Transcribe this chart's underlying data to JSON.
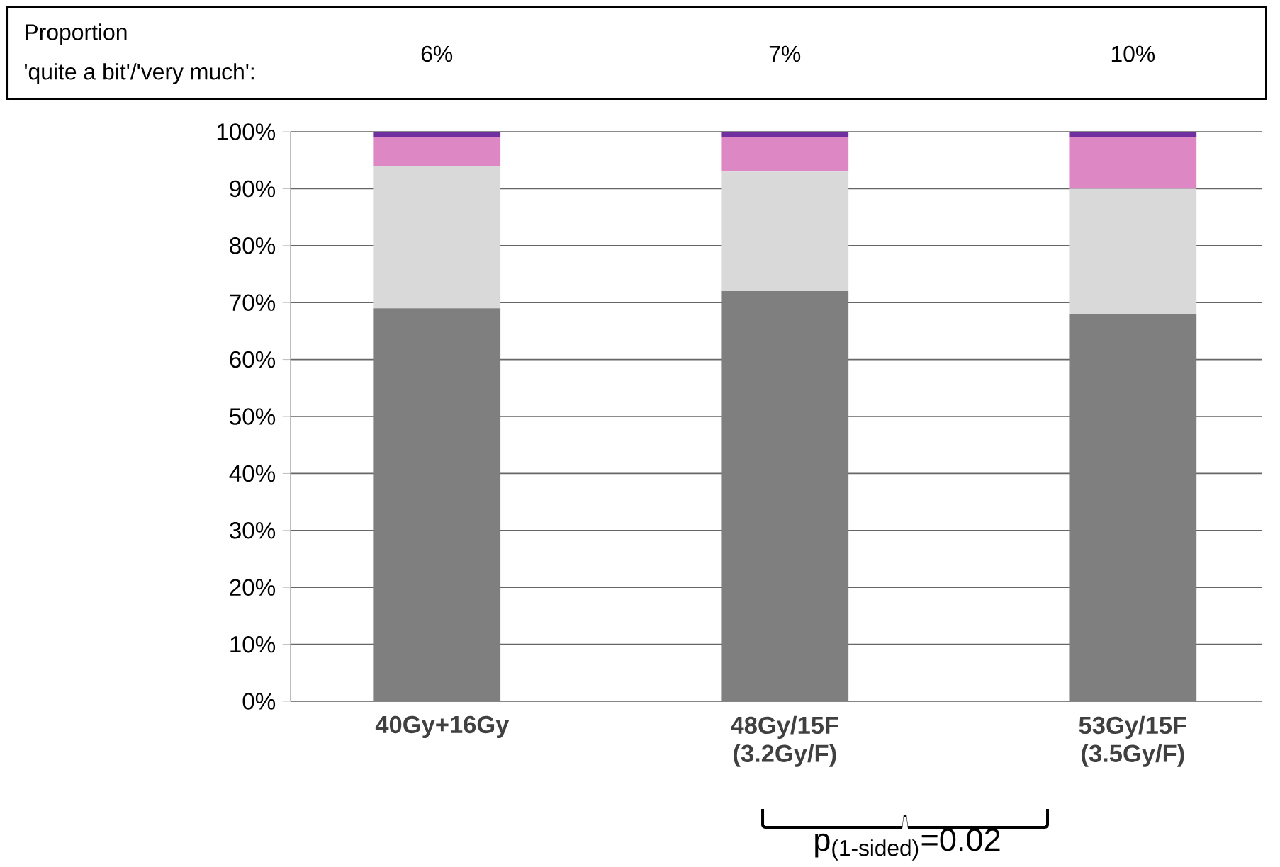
{
  "chart_data": {
    "type": "bar",
    "stacked": true,
    "categories": [
      "40Gy+16Gy",
      "48Gy/15F (3.2Gy/F)",
      "53Gy/15F (3.5Gy/F)"
    ],
    "series": [
      {
        "color": "#7f7f7f",
        "values": [
          69,
          72,
          68
        ]
      },
      {
        "color": "#d9d9d9",
        "values": [
          25,
          21,
          22
        ]
      },
      {
        "color": "#dd88c4",
        "values": [
          5,
          6,
          9
        ]
      },
      {
        "color": "#7030a0",
        "values": [
          1,
          1,
          1
        ]
      }
    ],
    "ylim": [
      0,
      100
    ],
    "yticks": [
      {
        "value": 0,
        "label": "0%"
      },
      {
        "value": 10,
        "label": "10%"
      },
      {
        "value": 20,
        "label": "20%"
      },
      {
        "value": 30,
        "label": "30%"
      },
      {
        "value": 40,
        "label": "40%"
      },
      {
        "value": 50,
        "label": "50%"
      },
      {
        "value": 60,
        "label": "60%"
      },
      {
        "value": 70,
        "label": "70%"
      },
      {
        "value": 80,
        "label": "80%"
      },
      {
        "value": 90,
        "label": "90%"
      },
      {
        "value": 100,
        "label": "100%"
      }
    ],
    "grid": "y",
    "annotations": [
      "Proportion",
      "'quite a bit'/'very much':",
      "6%",
      "7%",
      "10%",
      "p$_{(1-sided)}$=0.02"
    ]
  }
}
